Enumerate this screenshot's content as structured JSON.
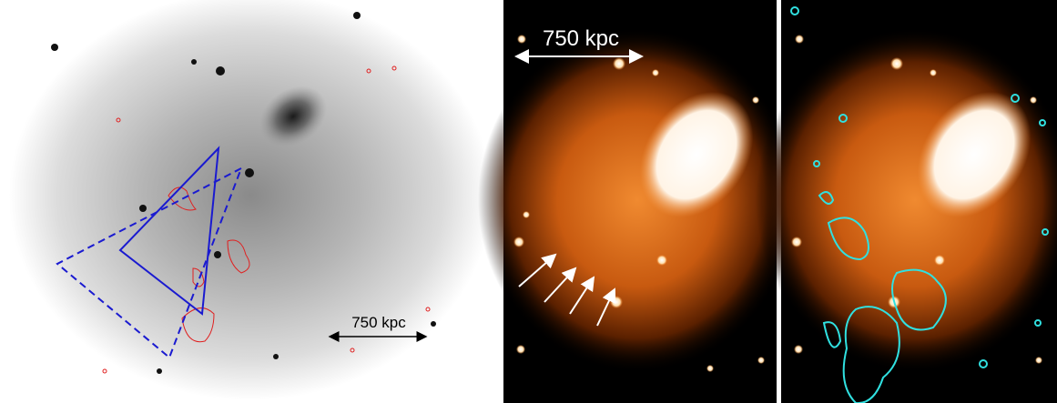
{
  "left_panel": {
    "scale_label": "750 kpc"
  },
  "middle_panel": {
    "scale_label": "750 kpc"
  }
}
